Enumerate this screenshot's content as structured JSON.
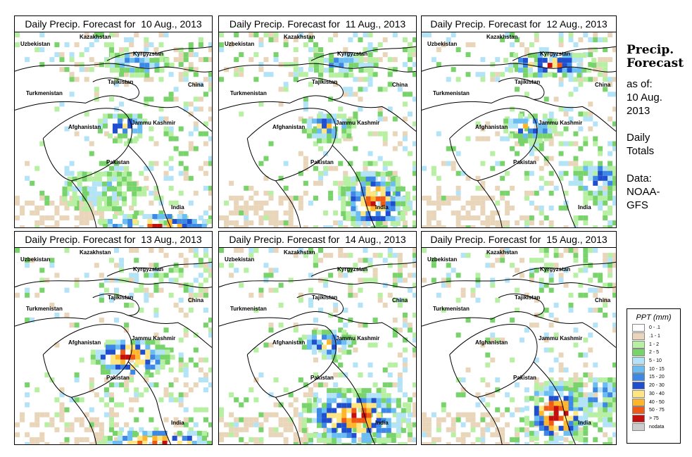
{
  "panels": [
    {
      "title": "Daily Precip. Forecast for  10 Aug., 2013"
    },
    {
      "title": "Daily Precip. Forecast for  11 Aug., 2013"
    },
    {
      "title": "Daily Precip. Forecast for  12 Aug., 2013"
    },
    {
      "title": "Daily Precip. Forecast for  13 Aug., 2013"
    },
    {
      "title": "Daily Precip. Forecast for  14 Aug., 2013"
    },
    {
      "title": "Daily Precip. Forecast for  15 Aug., 2013"
    }
  ],
  "map_labels": {
    "uzbekistan": "Uzbekistan",
    "kazakhstan": "Kazakhstan",
    "kyrgyzstan": "Kyrgyzstan",
    "tajikistan": "Tajikistan",
    "china": "China",
    "turkmenistan": "Turkmenistan",
    "afghanistan": "Afghanistan",
    "jammu_kashmir": "Jammu Kashmir",
    "pakistan": "Pakistan",
    "india": "India"
  },
  "sidebar": {
    "title_line1": "Precip.",
    "title_line2": "Forecast",
    "asof_line1": "as of:",
    "asof_line2": "10 Aug.",
    "asof_line3": "2013",
    "totals_line1": "Daily",
    "totals_line2": "Totals",
    "data_line1": "Data:",
    "data_line2": "NOAA-",
    "data_line3": "GFS"
  },
  "legend": {
    "title": "PPT (mm)",
    "items": [
      {
        "label": "0 - .1",
        "color": "#ffffff"
      },
      {
        "label": ".1 - 1",
        "color": "#e9d6ba"
      },
      {
        "label": "1 - 2",
        "color": "#b7f0a3"
      },
      {
        "label": "2 - 5",
        "color": "#78d36b"
      },
      {
        "label": "5 - 10",
        "color": "#b3e3f7"
      },
      {
        "label": "10 - 15",
        "color": "#6cbdf2"
      },
      {
        "label": "15 - 20",
        "color": "#3d88e4"
      },
      {
        "label": "20 - 30",
        "color": "#1f4fcf"
      },
      {
        "label": "30 - 40",
        "color": "#ffe680"
      },
      {
        "label": "40 - 50",
        "color": "#ffb62b"
      },
      {
        "label": "50 - 75",
        "color": "#f05a14"
      },
      {
        "label": "> 75",
        "color": "#c40f0f"
      },
      {
        "label": "nodata",
        "color": "#cccccc"
      }
    ]
  },
  "precip_patterns": [
    {
      "day": "10 Aug.",
      "hotspots": [
        "kyrgyzstan",
        "kashmir",
        "pakistan-south",
        "india-south-strong"
      ]
    },
    {
      "day": "11 Aug.",
      "hotspots": [
        "kyrgyzstan",
        "kashmir",
        "india-central-strong"
      ]
    },
    {
      "day": "12 Aug.",
      "hotspots": [
        "kyrgyzstan-strong",
        "kashmir",
        "india-east"
      ]
    },
    {
      "day": "13 Aug.",
      "hotspots": [
        "kashmir-very-strong",
        "india-south-strong"
      ]
    },
    {
      "day": "14 Aug.",
      "hotspots": [
        "kashmir",
        "pakistan-india-strong"
      ]
    },
    {
      "day": "15 Aug.",
      "hotspots": [
        "india-strong",
        "india-east"
      ]
    }
  ]
}
